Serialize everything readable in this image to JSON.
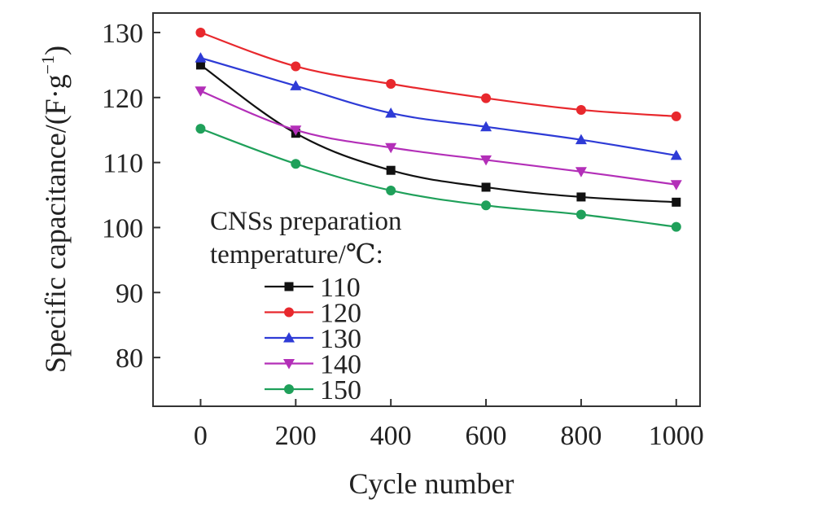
{
  "chart_data": {
    "type": "line",
    "title": "",
    "xlabel": "Cycle number",
    "ylabel": "Specific capacitance/(F·g",
    "ylabel_sup": "−1",
    "ylabel_close": ")",
    "x": [
      0,
      200,
      400,
      600,
      800,
      1000
    ],
    "x_ticks": [
      0,
      200,
      400,
      600,
      800,
      1000
    ],
    "x_tick_labels": [
      "0",
      "200",
      "400",
      "600",
      "800",
      "1000"
    ],
    "xlim": [
      -100,
      1050
    ],
    "y_ticks": [
      80,
      90,
      100,
      110,
      120,
      130
    ],
    "y_tick_labels": [
      "80",
      "90",
      "100",
      "110",
      "120",
      "130"
    ],
    "ylim": [
      72.5,
      133
    ],
    "grid": false,
    "legend": {
      "title_line1": "CNSs preparation",
      "title_line2": "temperature/℃:",
      "placement": "lower-left"
    },
    "series": [
      {
        "name": "110",
        "color": "#111111",
        "marker": "square",
        "values": [
          125,
          114.5,
          108.8,
          106.2,
          104.7,
          103.9
        ]
      },
      {
        "name": "120",
        "color": "#e8282d",
        "marker": "circle",
        "values": [
          130,
          124.8,
          122.1,
          119.9,
          118.1,
          117.1
        ]
      },
      {
        "name": "130",
        "color": "#2e3bd6",
        "marker": "triangle-up",
        "values": [
          126.1,
          121.8,
          117.6,
          115.5,
          113.5,
          111.1
        ]
      },
      {
        "name": "140",
        "color": "#b32fb8",
        "marker": "triangle-down",
        "values": [
          121,
          115,
          112.3,
          110.4,
          108.6,
          106.6
        ]
      },
      {
        "name": "150",
        "color": "#1fa05a",
        "marker": "circle",
        "values": [
          115.2,
          109.8,
          105.7,
          103.4,
          102,
          100.1
        ]
      }
    ]
  }
}
